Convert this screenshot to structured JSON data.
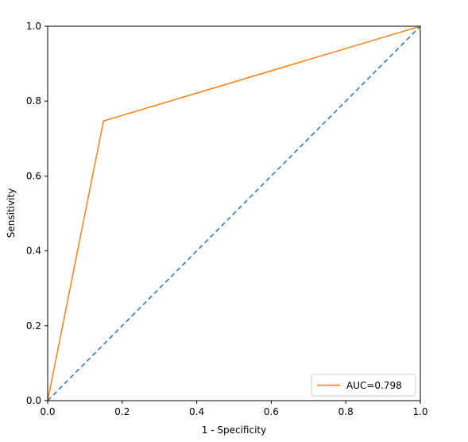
{
  "chart_data": {
    "type": "line",
    "title": "",
    "xlabel": "1 - Specificity",
    "ylabel": "Sensitivity",
    "xlim": [
      0.0,
      1.0
    ],
    "ylim": [
      0.0,
      1.0
    ],
    "xticks": [
      "0.0",
      "0.2",
      "0.4",
      "0.6",
      "0.8",
      "1.0"
    ],
    "yticks": [
      "0.0",
      "0.2",
      "0.4",
      "0.6",
      "0.8",
      "1.0"
    ],
    "grid": false,
    "legend_position": "lower-right",
    "series": [
      {
        "name": "AUC=0.798",
        "color": "#ff7f0e",
        "style": "solid",
        "x": [
          0.0,
          0.15,
          1.0
        ],
        "y": [
          0.0,
          0.747,
          1.0
        ]
      },
      {
        "name": "",
        "color": "#1f77b4",
        "style": "dashed",
        "x": [
          0.0,
          1.0
        ],
        "y": [
          0.0,
          1.0
        ]
      }
    ]
  }
}
